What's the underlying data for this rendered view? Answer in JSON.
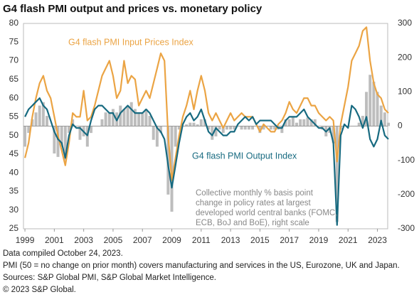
{
  "chart_data": {
    "type": "line",
    "title": "G4 flash PMI output and prices vs. monetary policy",
    "x": [
      1999,
      1999.25,
      1999.5,
      1999.75,
      2000,
      2000.25,
      2000.5,
      2000.75,
      2001,
      2001.25,
      2001.5,
      2001.75,
      2002,
      2002.25,
      2002.5,
      2002.75,
      2003,
      2003.25,
      2003.5,
      2003.75,
      2004,
      2004.25,
      2004.5,
      2004.75,
      2005,
      2005.25,
      2005.5,
      2005.75,
      2006,
      2006.25,
      2006.5,
      2006.75,
      2007,
      2007.25,
      2007.5,
      2007.75,
      2008,
      2008.25,
      2008.5,
      2008.75,
      2009,
      2009.25,
      2009.5,
      2009.75,
      2010,
      2010.25,
      2010.5,
      2010.75,
      2011,
      2011.25,
      2011.5,
      2011.75,
      2012,
      2012.25,
      2012.5,
      2012.75,
      2013,
      2013.25,
      2013.5,
      2013.75,
      2014,
      2014.25,
      2014.5,
      2014.75,
      2015,
      2015.25,
      2015.5,
      2015.75,
      2016,
      2016.25,
      2016.5,
      2016.75,
      2017,
      2017.25,
      2017.5,
      2017.75,
      2018,
      2018.25,
      2018.5,
      2018.75,
      2019,
      2019.25,
      2019.5,
      2019.75,
      2020,
      2020.25,
      2020.5,
      2020.75,
      2021,
      2021.25,
      2021.5,
      2021.75,
      2022,
      2022.25,
      2022.5,
      2022.75,
      2023,
      2023.25,
      2023.5,
      2023.75
    ],
    "series": [
      {
        "name": "Collective monthly % basis point change in policy rates",
        "type": "bar",
        "axis": "y2",
        "color": "#bdbdbd",
        "values": [
          -60,
          -20,
          20,
          40,
          60,
          70,
          30,
          0,
          -80,
          -90,
          -60,
          -100,
          -20,
          20,
          0,
          -40,
          -30,
          -60,
          -20,
          0,
          0,
          20,
          40,
          40,
          50,
          40,
          60,
          50,
          60,
          70,
          50,
          40,
          40,
          50,
          30,
          -40,
          -60,
          -20,
          0,
          -200,
          -250,
          -60,
          -10,
          0,
          5,
          10,
          10,
          5,
          20,
          20,
          -10,
          -40,
          -30,
          -10,
          -20,
          -10,
          -10,
          -10,
          0,
          -10,
          -10,
          -10,
          -10,
          0,
          -20,
          -10,
          0,
          -10,
          -10,
          -10,
          -20,
          20,
          20,
          25,
          10,
          20,
          20,
          25,
          20,
          20,
          0,
          -10,
          -30,
          -20,
          -50,
          -280,
          -10,
          0,
          0,
          0,
          0,
          10,
          30,
          100,
          150,
          130,
          100,
          60,
          40,
          10
        ]
      },
      {
        "name": "G4 flash PMI Input Prices Index",
        "type": "line",
        "color": "#eba444",
        "values": [
          44,
          48,
          55,
          60,
          64,
          66,
          62,
          60,
          55,
          50,
          46,
          42,
          48,
          56,
          55,
          55,
          62,
          54,
          55,
          58,
          62,
          66,
          68,
          70,
          66,
          60,
          62,
          70,
          64,
          66,
          65,
          58,
          60,
          62,
          60,
          64,
          68,
          72,
          70,
          50,
          38,
          44,
          50,
          55,
          58,
          62,
          57,
          62,
          66,
          62,
          56,
          54,
          56,
          54,
          52,
          54,
          56,
          54,
          55,
          56,
          55,
          55,
          55,
          53,
          51,
          53,
          52,
          51,
          51,
          53,
          54,
          56,
          59,
          57,
          56,
          58,
          60,
          60,
          58,
          58,
          56,
          55,
          54,
          55,
          54,
          43,
          53,
          58,
          63,
          70,
          72,
          74,
          78,
          79,
          70,
          64,
          61,
          60,
          57,
          56
        ]
      },
      {
        "name": "G4 flash PMI Output Index",
        "type": "line",
        "color": "#176a80",
        "values": [
          55,
          57,
          58,
          59,
          60,
          58,
          57,
          54,
          51,
          49,
          48,
          44,
          50,
          53,
          52,
          52,
          51,
          50,
          54,
          57,
          58,
          58,
          57,
          56,
          56,
          54,
          56,
          57,
          58,
          57,
          56,
          56,
          56,
          57,
          56,
          54,
          52,
          51,
          49,
          42,
          36,
          42,
          48,
          53,
          55,
          56,
          54,
          55,
          57,
          54,
          51,
          50,
          52,
          51,
          50,
          50,
          51,
          51,
          53,
          54,
          55,
          54,
          55,
          53,
          54,
          54,
          54,
          54,
          53,
          52,
          52,
          54,
          55,
          55,
          55,
          56,
          57,
          55,
          54,
          53,
          52,
          52,
          51,
          52,
          48,
          26,
          50,
          53,
          52,
          58,
          57,
          55,
          52,
          55,
          49,
          47,
          49,
          54,
          50,
          49
        ]
      }
    ],
    "annotations": [
      "Collective monthly % basis point",
      "change in policy rates at largest",
      "developed world central banks (FOMC,",
      "ECB, BoJ and BoE), right scale"
    ],
    "xlim": [
      1998.9,
      2023.7
    ],
    "xticks": [
      1999,
      2001,
      2003,
      2005,
      2007,
      2009,
      2011,
      2013,
      2015,
      2017,
      2019,
      2021,
      2023
    ],
    "ylim": [
      25,
      80
    ],
    "yticks": [
      25,
      30,
      35,
      40,
      45,
      50,
      55,
      60,
      65,
      70,
      75,
      80
    ],
    "y2lim": [
      -300,
      300
    ],
    "y2ticks": [
      -300,
      -200,
      -100,
      0,
      100,
      200,
      300
    ],
    "notes": [
      "Data compiled October 24, 2023.",
      "PMI (50 = no change on prior month) covers manufacturing and services in the US, Eurozone, UK and Japan.",
      "Sources: S&P Global PMI, S&P Global Market Intelligence.",
      "© 2023 S&P Global."
    ]
  }
}
